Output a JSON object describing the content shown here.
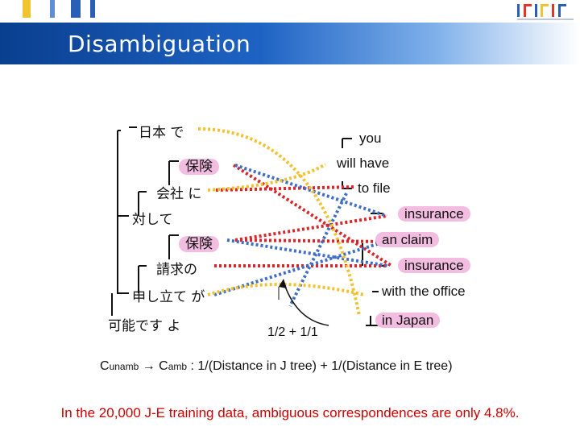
{
  "slide": {
    "title": "Disambiguation"
  },
  "japanese_tree": {
    "nodes": [
      "日本 で",
      "保険",
      "会社 に",
      "対して",
      "保険",
      "請求の",
      "申し立て が",
      "可能です よ"
    ]
  },
  "english_tree": {
    "nodes": [
      "you",
      "will have",
      "to file",
      "insurance",
      "an claim",
      "insurance",
      "with the office",
      "in Japan"
    ]
  },
  "annotation": {
    "fraction_label": "1/2 + 1/1"
  },
  "formula": {
    "c1": "C",
    "c1_sub": "unamb",
    "arrow": " → ",
    "c2": "C",
    "c2_sub": "amb",
    "rest": " : 1/(Distance in J tree) + 1/(Distance in E tree)"
  },
  "note": "In the 20,000 J-E training data, ambiguous correspondences are only 4.8%.",
  "colors": {
    "header_dark": "#0a3f8f",
    "red_link": "#d8262a",
    "blue_link": "#3f6fc4",
    "yellow_link": "#f2c12e",
    "highlight": "#f2bde0",
    "note_text": "#cc0000"
  }
}
